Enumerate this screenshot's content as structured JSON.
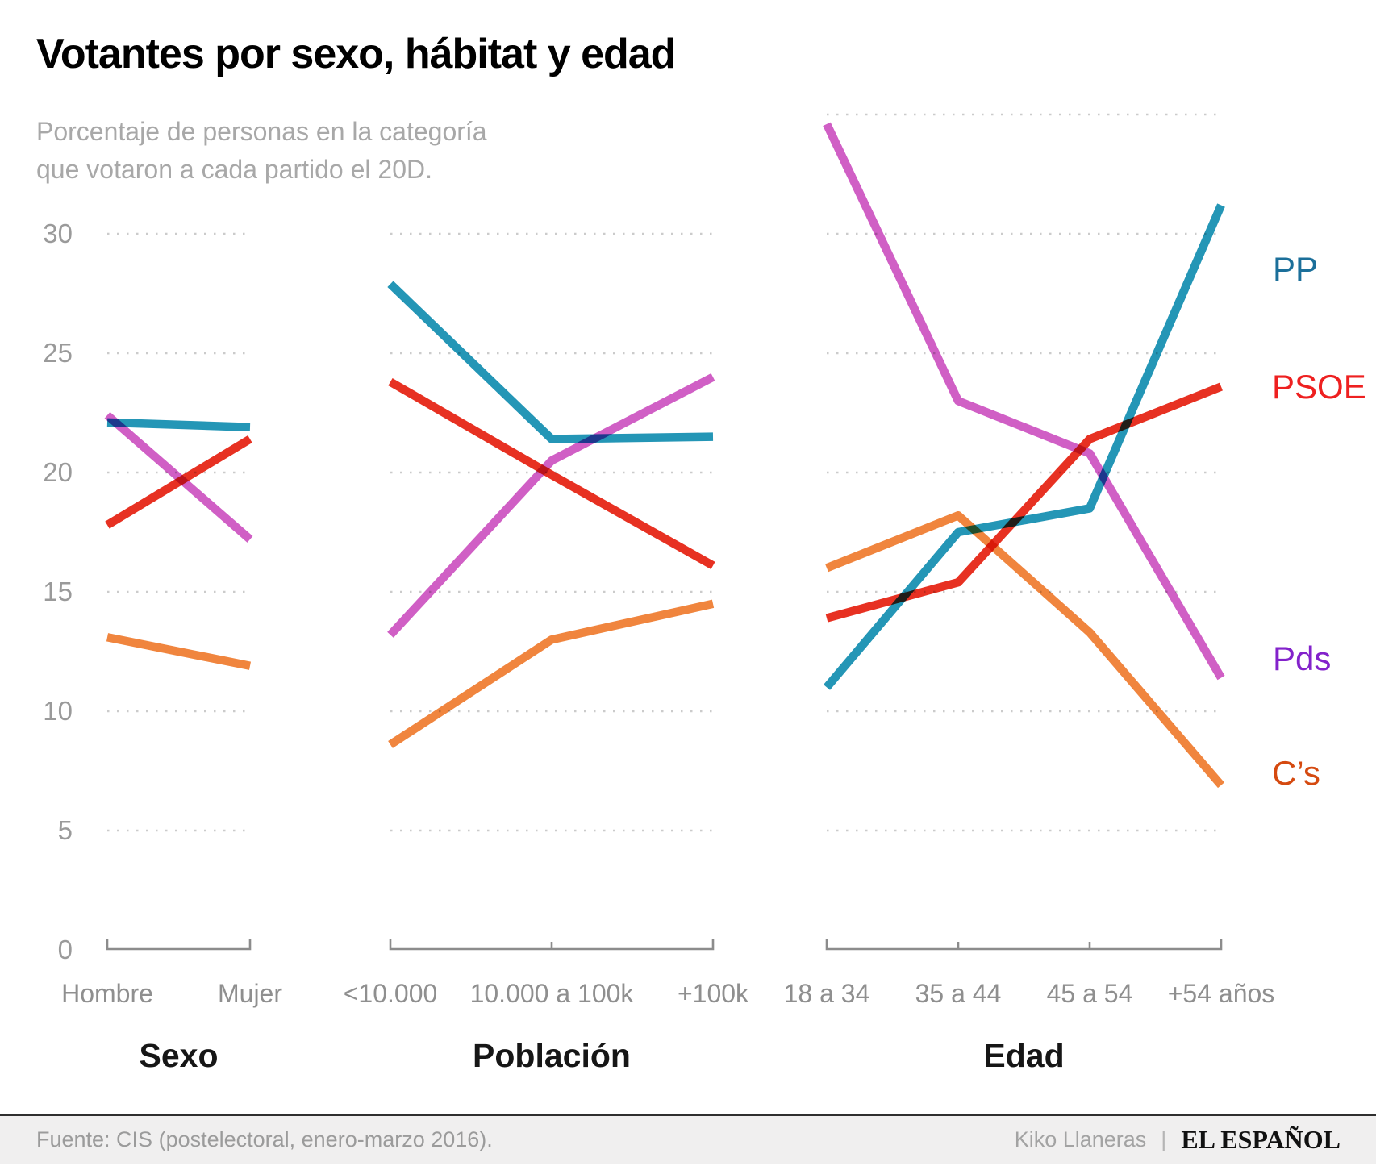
{
  "header": {
    "title": "Votantes por sexo, hábitat y edad",
    "subtitle_line1": "Porcentaje de personas en la categoría",
    "subtitle_line2": "que votaron a cada partido el 20D."
  },
  "footer": {
    "source": "Fuente: CIS (postelectoral, enero-marzo 2016).",
    "author": "Kiko Llaneras",
    "separator": "|",
    "brand": "EL ESPAÑOL"
  },
  "chart_data": {
    "type": "line",
    "title": "Votantes por sexo, hábitat y edad",
    "subtitle": "Porcentaje de personas en la categoría que votaron a cada partido el 20D.",
    "ylabel": "",
    "ylim": [
      0,
      37
    ],
    "yticks": [
      0,
      5,
      10,
      15,
      20,
      25,
      30
    ],
    "grid": "dotted",
    "legend_position": "right",
    "panels": [
      {
        "title": "Sexo",
        "categories": [
          "Hombre",
          "Mujer"
        ],
        "gridline_values": [
          5,
          10,
          15,
          20,
          25,
          30
        ]
      },
      {
        "title": "Población",
        "categories": [
          "<10.000",
          "10.000 a 100k",
          "+100k"
        ],
        "gridline_values": [
          5,
          10,
          15,
          20,
          25,
          30
        ]
      },
      {
        "title": "Edad",
        "categories": [
          "18 a 34",
          "35 a 44",
          "45 a 54",
          "+54 años"
        ],
        "gridline_values": [
          5,
          10,
          15,
          20,
          25,
          30,
          35
        ]
      }
    ],
    "series": [
      {
        "name": "PP",
        "color": "#2496b6",
        "label_color": "#1b6f9a",
        "values": [
          [
            22.1,
            21.9
          ],
          [
            27.9,
            21.4,
            21.5
          ],
          [
            11.0,
            17.5,
            18.5,
            31.2
          ]
        ]
      },
      {
        "name": "PSOE",
        "color": "#e73122",
        "label_color": "#ee2020",
        "values": [
          [
            17.8,
            21.4
          ],
          [
            23.8,
            19.9,
            16.1
          ],
          [
            13.9,
            15.4,
            21.4,
            23.6
          ]
        ]
      },
      {
        "name": "Pds",
        "color": "#d05fc5",
        "label_color": "#8322cb",
        "values": [
          [
            22.4,
            17.2
          ],
          [
            13.2,
            20.5,
            24.0
          ],
          [
            34.6,
            23.0,
            20.8,
            11.4
          ]
        ]
      },
      {
        "name": "C’s",
        "color": "#f0853e",
        "label_color": "#d54a10",
        "values": [
          [
            13.1,
            11.9
          ],
          [
            8.6,
            13.0,
            14.5
          ],
          [
            16.0,
            18.2,
            13.3,
            6.9
          ]
        ]
      }
    ]
  }
}
